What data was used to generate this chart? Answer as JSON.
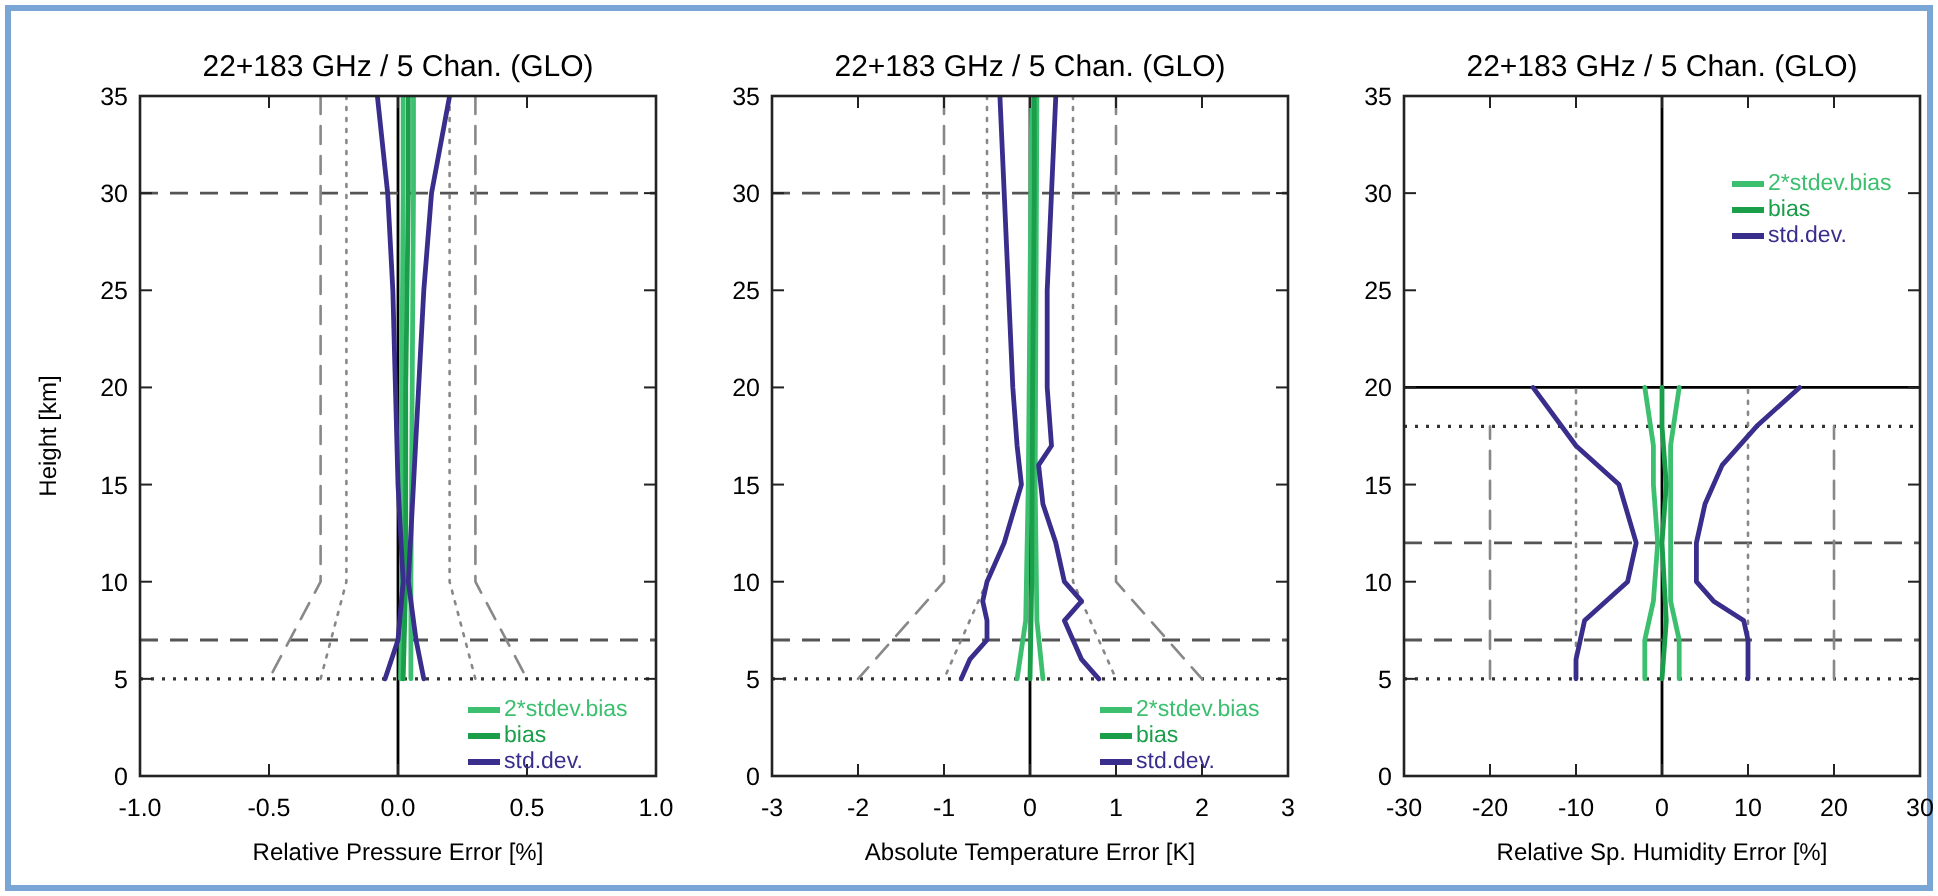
{
  "chart_data": [
    {
      "type": "line",
      "title": "22+183 GHz / 5 Chan. (GLO)",
      "xlabel": "Relative Pressure Error [%]",
      "ylabel": "Height [km]",
      "xlim": [
        -1,
        1
      ],
      "ylim": [
        0,
        35
      ],
      "xticks": [
        {
          "value": -1,
          "label": "-1.0"
        },
        {
          "value": -0.5,
          "label": "-0.5"
        },
        {
          "value": 0,
          "label": "0.0"
        },
        {
          "value": 0.5,
          "label": "0.5"
        },
        {
          "value": 1,
          "label": "1.0"
        }
      ],
      "yticks": [
        0,
        5,
        10,
        15,
        20,
        25,
        30,
        35
      ],
      "legend": "bottom right",
      "grid": false,
      "ref_lines": [
        {
          "axis": "x",
          "value": 0,
          "color": "#000000",
          "line_style": "solid"
        },
        {
          "axis": "y",
          "value": 30,
          "color": "#555555",
          "line_style": "dashed"
        },
        {
          "axis": "y",
          "value": 7,
          "color": "#555555",
          "line_style": "dashed"
        },
        {
          "axis": "y",
          "value": 5,
          "color": "#333333",
          "line_style": "dotted"
        }
      ],
      "series": [
        {
          "color": "#888888",
          "line_style": "dashed",
          "x": [
            -0.3,
            -0.3,
            -0.5
          ],
          "values": [
            35,
            10,
            5
          ]
        },
        {
          "color": "#888888",
          "line_style": "dashed",
          "x": [
            0.3,
            0.3,
            0.5
          ],
          "values": [
            35,
            10,
            5
          ]
        },
        {
          "color": "#888888",
          "line_style": "dotted",
          "x": [
            -0.2,
            -0.2,
            -0.3
          ],
          "values": [
            35,
            10,
            5
          ]
        },
        {
          "color": "#888888",
          "line_style": "dotted",
          "x": [
            0.2,
            0.2,
            0.3
          ],
          "values": [
            35,
            10,
            5
          ]
        },
        {
          "name": "2*stdev.bias",
          "color": "#3cc070",
          "line_style": "solid",
          "x": [
            0.01,
            0.015,
            0.015,
            0.02,
            0.02
          ],
          "values": [
            5,
            10,
            20,
            30,
            35
          ]
        },
        {
          "color": "#3cc070",
          "line_style": "solid",
          "x": [
            0.05,
            0.05,
            0.055,
            0.06,
            0.06
          ],
          "values": [
            5,
            10,
            20,
            30,
            35
          ]
        },
        {
          "name": "bias",
          "color": "#1a9e4a",
          "line_style": "solid",
          "x": [
            0.02,
            0.03,
            0.03,
            0.04,
            0.04
          ],
          "values": [
            5,
            10,
            20,
            30,
            35
          ]
        },
        {
          "name": "std.dev.",
          "color": "#3a2e8c",
          "line_style": "solid",
          "x": [
            0.1,
            0.07,
            0.04,
            0.06,
            0.08,
            0.1,
            0.13,
            0.2
          ],
          "values": [
            5,
            7,
            10,
            15,
            20,
            25,
            30,
            35
          ]
        },
        {
          "color": "#3a2e8c",
          "line_style": "solid",
          "x": [
            -0.05,
            0,
            0.02,
            0,
            -0.01,
            -0.02,
            -0.04,
            -0.08
          ],
          "values": [
            5,
            7,
            10,
            15,
            20,
            25,
            30,
            35
          ]
        }
      ]
    },
    {
      "type": "line",
      "title": "22+183 GHz / 5 Chan. (GLO)",
      "xlabel": "Absolute Temperature Error [K]",
      "xlim": [
        -3,
        3
      ],
      "ylim": [
        0,
        35
      ],
      "xticks": [
        -3,
        -2,
        -1,
        0,
        1,
        2,
        3
      ],
      "yticks": [
        0,
        5,
        10,
        15,
        20,
        25,
        30,
        35
      ],
      "legend": "bottom right",
      "grid": false,
      "ref_lines": [
        {
          "axis": "x",
          "value": 0,
          "color": "#000000",
          "line_style": "solid"
        },
        {
          "axis": "y",
          "value": 30,
          "color": "#555555",
          "line_style": "dashed"
        },
        {
          "axis": "y",
          "value": 7,
          "color": "#555555",
          "line_style": "dashed"
        },
        {
          "axis": "y",
          "value": 5,
          "color": "#333333",
          "line_style": "dotted"
        }
      ],
      "series": [
        {
          "color": "#888888",
          "line_style": "dashed",
          "x": [
            -1,
            -1,
            -2
          ],
          "values": [
            35,
            10,
            5
          ]
        },
        {
          "color": "#888888",
          "line_style": "dashed",
          "x": [
            1,
            1,
            2
          ],
          "values": [
            35,
            10,
            5
          ]
        },
        {
          "color": "#888888",
          "line_style": "dotted",
          "x": [
            -0.5,
            -0.5,
            -1
          ],
          "values": [
            35,
            10,
            5
          ]
        },
        {
          "color": "#888888",
          "line_style": "dotted",
          "x": [
            0.5,
            0.5,
            1
          ],
          "values": [
            35,
            10,
            5
          ]
        },
        {
          "name": "2*stdev.bias",
          "color": "#3cc070",
          "line_style": "solid",
          "x": [
            -0.15,
            -0.05,
            -0.02,
            0,
            0.02
          ],
          "values": [
            5,
            8,
            15,
            25,
            35
          ]
        },
        {
          "color": "#3cc070",
          "line_style": "solid",
          "x": [
            0.15,
            0.08,
            0.06,
            0.07,
            0.08
          ],
          "values": [
            5,
            8,
            15,
            25,
            35
          ]
        },
        {
          "name": "bias",
          "color": "#1a9e4a",
          "line_style": "solid",
          "x": [
            0,
            0.02,
            0.03,
            0.05,
            0.05
          ],
          "values": [
            5,
            10,
            20,
            30,
            35
          ]
        },
        {
          "name": "std.dev.",
          "color": "#3a2e8c",
          "line_style": "solid",
          "x": [
            0.8,
            0.6,
            0.5,
            0.4,
            0.6,
            0.4,
            0.3,
            0.15,
            0.1,
            0.25,
            0.2,
            0.2,
            0.25,
            0.3
          ],
          "values": [
            5,
            6,
            7,
            8,
            9,
            10,
            12,
            14,
            16,
            17,
            20,
            25,
            30,
            35
          ]
        },
        {
          "color": "#3a2e8c",
          "line_style": "solid",
          "x": [
            -0.8,
            -0.7,
            -0.5,
            -0.5,
            -0.55,
            -0.5,
            -0.3,
            -0.1,
            -0.15,
            -0.2,
            -0.25,
            -0.3,
            -0.35
          ],
          "values": [
            5,
            6,
            7,
            8,
            9,
            10,
            12,
            15,
            17,
            20,
            25,
            30,
            35
          ]
        }
      ]
    },
    {
      "type": "line",
      "title": "22+183 GHz / 5 Chan. (GLO)",
      "xlabel": "Relative Sp. Humidity Error [%]",
      "xlim": [
        -30,
        30
      ],
      "ylim": [
        0,
        35
      ],
      "xticks": [
        -30,
        -20,
        -10,
        0,
        10,
        20,
        30
      ],
      "yticks": [
        0,
        5,
        10,
        15,
        20,
        25,
        30,
        35
      ],
      "legend": "top right",
      "grid": false,
      "ref_lines": [
        {
          "axis": "x",
          "value": 0,
          "color": "#000000",
          "line_style": "solid"
        },
        {
          "axis": "y",
          "value": 20,
          "color": "#000000",
          "line_style": "solid"
        },
        {
          "axis": "y",
          "value": 18,
          "color": "#333333",
          "line_style": "dotted"
        },
        {
          "axis": "y",
          "value": 12,
          "color": "#555555",
          "line_style": "dashed"
        },
        {
          "axis": "y",
          "value": 7,
          "color": "#555555",
          "line_style": "dashed"
        },
        {
          "axis": "y",
          "value": 5,
          "color": "#333333",
          "line_style": "dotted"
        }
      ],
      "series": [
        {
          "color": "#888888",
          "line_style": "dashed",
          "x": [
            -20,
            -20
          ],
          "values": [
            5,
            18
          ]
        },
        {
          "color": "#888888",
          "line_style": "dashed",
          "x": [
            20,
            20
          ],
          "values": [
            5,
            18
          ]
        },
        {
          "color": "#888888",
          "line_style": "dotted",
          "x": [
            -10,
            -10
          ],
          "values": [
            5,
            20
          ]
        },
        {
          "color": "#888888",
          "line_style": "dotted",
          "x": [
            10,
            10
          ],
          "values": [
            5,
            20
          ]
        },
        {
          "name": "2*stdev.bias",
          "color": "#3cc070",
          "line_style": "solid",
          "x": [
            -2,
            -2,
            -1,
            -0.5,
            -1,
            -1,
            -2
          ],
          "values": [
            5,
            7,
            9,
            12,
            15,
            17,
            20
          ]
        },
        {
          "color": "#3cc070",
          "line_style": "solid",
          "x": [
            2,
            2,
            1,
            1,
            1,
            1,
            2
          ],
          "values": [
            5,
            7,
            9,
            12,
            15,
            17,
            20
          ]
        },
        {
          "name": "bias",
          "color": "#1a9e4a",
          "line_style": "solid",
          "x": [
            0,
            0.5,
            0,
            0.5,
            0,
            0
          ],
          "values": [
            5,
            8,
            12,
            15,
            18,
            20
          ]
        },
        {
          "name": "std.dev.",
          "color": "#3a2e8c",
          "line_style": "solid",
          "x": [
            10,
            10,
            9.5,
            6,
            4,
            4,
            5,
            7,
            11,
            16
          ],
          "values": [
            5,
            7,
            8,
            9,
            10,
            12,
            14,
            16,
            18,
            20
          ]
        },
        {
          "color": "#3a2e8c",
          "line_style": "solid",
          "x": [
            -10,
            -10,
            -9,
            -4,
            -3,
            -5,
            -10,
            -15
          ],
          "values": [
            5,
            6,
            8,
            10,
            12,
            15,
            17,
            20
          ]
        }
      ]
    }
  ]
}
